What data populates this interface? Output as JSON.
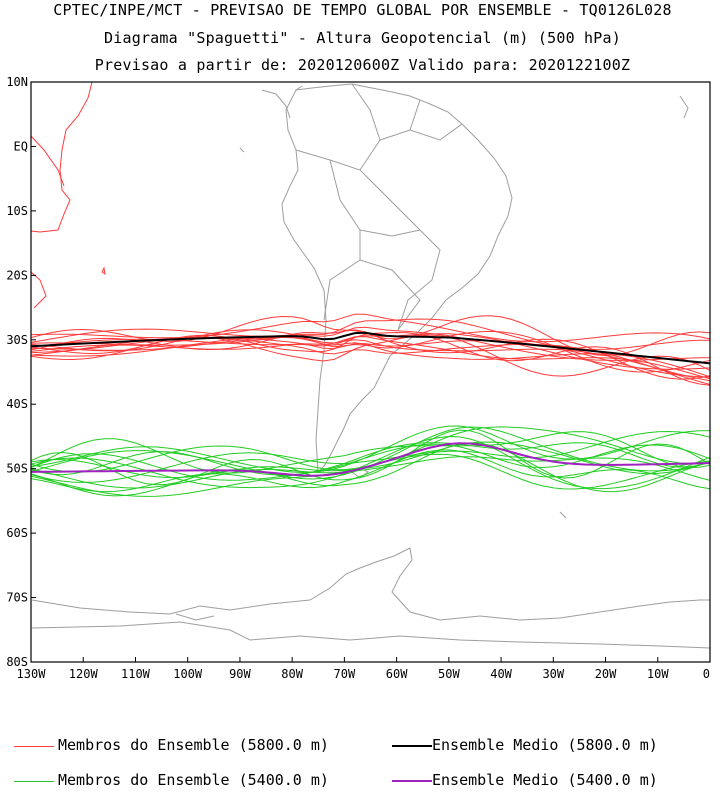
{
  "title": {
    "line1": "CPTEC/INPE/MCT - PREVISAO DE TEMPO GLOBAL POR ENSEMBLE - TQ0126L028",
    "line2": "Diagrama \"Spaguetti\" - Altura Geopotencial (m) (500 hPa)",
    "line3": "Previsao a partir de: 2020120600Z  Valido para: 2020122100Z"
  },
  "axes": {
    "lat_labels": [
      "10N",
      "EQ",
      "10S",
      "20S",
      "30S",
      "40S",
      "50S",
      "60S",
      "70S",
      "80S"
    ],
    "lon_labels": [
      "130W",
      "120W",
      "110W",
      "100W",
      "90W",
      "80W",
      "70W",
      "60W",
      "50W",
      "40W",
      "30W",
      "20W",
      "10W",
      "0"
    ],
    "lat_range": [
      -80,
      10
    ],
    "lon_range": [
      -130,
      0
    ]
  },
  "legend": {
    "members_5800": "Membros do Ensemble (5800.0 m)",
    "mean_5800": "Ensemble Medio (5800.0 m)",
    "members_5400": "Membros do Ensemble (5400.0 m)",
    "mean_5400": "Ensemble Medio (5400.0 m)"
  },
  "colors": {
    "members_5800": "#ff3b3b",
    "mean_5800": "#000000",
    "members_5400": "#22cc22",
    "mean_5400": "#a020c0",
    "coastline": "#9e9e9e"
  }
}
